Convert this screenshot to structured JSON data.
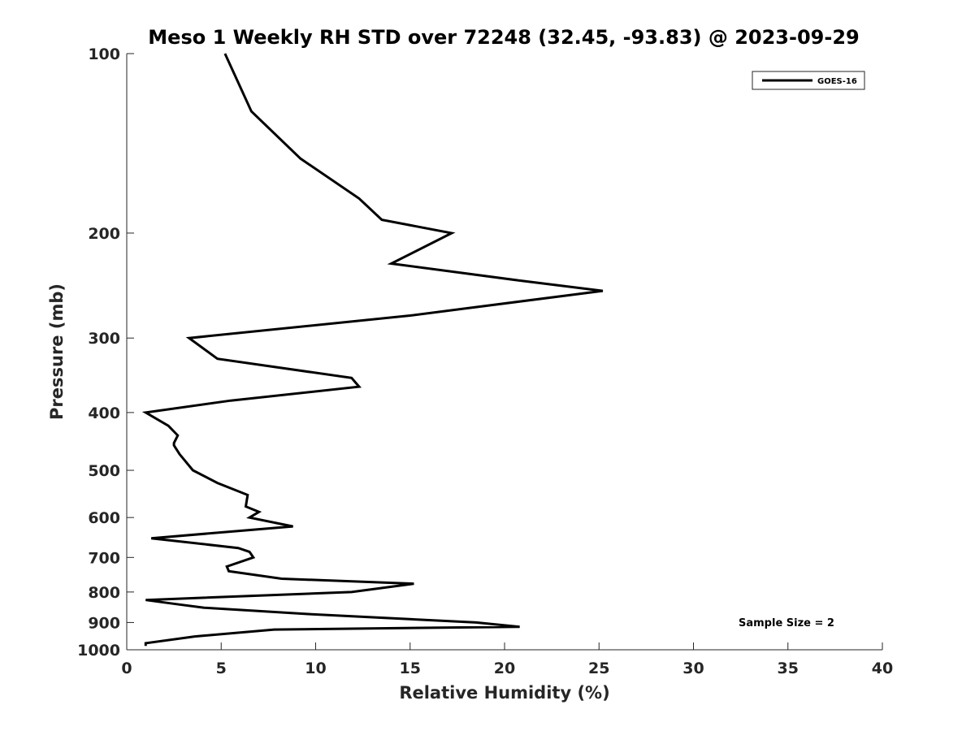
{
  "chart_data": {
    "type": "line",
    "title": "Meso 1 Weekly RH STD over 72248 (32.45, -93.83) @ 2023-09-29",
    "xlabel": "Relative Humidity (%)",
    "ylabel": "Pressure (mb)",
    "xlim": [
      0,
      40
    ],
    "ylim": [
      100,
      1000
    ],
    "y_scale": "log",
    "y_reversed": true,
    "x_ticks": [
      "0",
      "5",
      "10",
      "15",
      "20",
      "25",
      "30",
      "35",
      "40"
    ],
    "y_ticks": [
      "100",
      "200",
      "300",
      "400",
      "500",
      "600",
      "700",
      "800",
      "900",
      "1000"
    ],
    "grid": false,
    "legend_position": "top-right",
    "annotation": "Sample Size = 2",
    "series": [
      {
        "name": "GOES-16",
        "color": "#000000",
        "points": [
          [
            5.2,
            100
          ],
          [
            6.6,
            125
          ],
          [
            9.2,
            150
          ],
          [
            12.3,
            175
          ],
          [
            13.5,
            190
          ],
          [
            17.2,
            200
          ],
          [
            14.0,
            225
          ],
          [
            20.7,
            240
          ],
          [
            25.2,
            250
          ],
          [
            15.0,
            275
          ],
          [
            3.3,
            300
          ],
          [
            4.8,
            325
          ],
          [
            11.9,
            350
          ],
          [
            12.3,
            362
          ],
          [
            5.5,
            382
          ],
          [
            1.0,
            400
          ],
          [
            2.2,
            421
          ],
          [
            2.7,
            437
          ],
          [
            2.5,
            450
          ],
          [
            2.5,
            454
          ],
          [
            2.8,
            470
          ],
          [
            3.5,
            500
          ],
          [
            4.8,
            525
          ],
          [
            6.4,
            550
          ],
          [
            6.3,
            575
          ],
          [
            7.0,
            587
          ],
          [
            6.5,
            600
          ],
          [
            8.8,
            621
          ],
          [
            1.3,
            650
          ],
          [
            5.9,
            675
          ],
          [
            6.5,
            685
          ],
          [
            6.7,
            700
          ],
          [
            5.3,
            725
          ],
          [
            5.4,
            738
          ],
          [
            8.2,
            760
          ],
          [
            15.2,
            775
          ],
          [
            11.9,
            800
          ],
          [
            1.0,
            825
          ],
          [
            2.6,
            838
          ],
          [
            4.1,
            850
          ],
          [
            9.6,
            871
          ],
          [
            18.5,
            900
          ],
          [
            20.8,
            915
          ],
          [
            7.8,
            925
          ],
          [
            3.6,
            950
          ],
          [
            1.0,
            975
          ],
          [
            1.0,
            985
          ]
        ]
      }
    ]
  }
}
